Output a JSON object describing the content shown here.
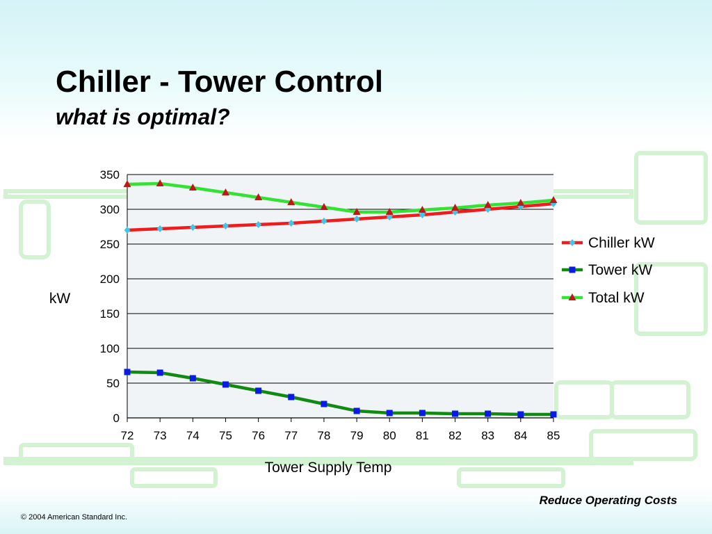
{
  "slide": {
    "title": "Chiller - Tower Control",
    "subtitle": "what is optimal?",
    "footer_tag": "Reduce Operating Costs",
    "copyright": "© 2004 American Standard Inc."
  },
  "colors": {
    "chiller": "#ee1c1c",
    "chiller_marker": "#3fc6e8",
    "tower": "#108a10",
    "tower_marker": "#0b1be6",
    "total": "#33e233",
    "total_marker": "#c01818",
    "plot_bg": "#f1f4f6"
  },
  "chart_data": {
    "type": "line",
    "title": "",
    "xlabel": "Tower Supply Temp",
    "ylabel": "kW",
    "x": [
      72,
      73,
      74,
      75,
      76,
      77,
      78,
      79,
      80,
      81,
      82,
      83,
      84,
      85
    ],
    "ylim": [
      0,
      350
    ],
    "yticks": [
      0,
      50,
      100,
      150,
      200,
      250,
      300,
      350
    ],
    "grid": true,
    "legend_position": "right",
    "series": [
      {
        "name": "Chiller kW",
        "marker": "diamond",
        "values": [
          270,
          272,
          274,
          276,
          278,
          280,
          283,
          286,
          289,
          292,
          296,
          300,
          304,
          308
        ]
      },
      {
        "name": "Tower kW",
        "marker": "square",
        "values": [
          66,
          65,
          57,
          48,
          39,
          30,
          20,
          10,
          7,
          7,
          6,
          6,
          5,
          5
        ]
      },
      {
        "name": "Total kW",
        "marker": "triangle",
        "values": [
          336,
          337,
          331,
          324,
          317,
          310,
          303,
          296,
          296,
          299,
          302,
          306,
          309,
          313
        ]
      }
    ]
  }
}
